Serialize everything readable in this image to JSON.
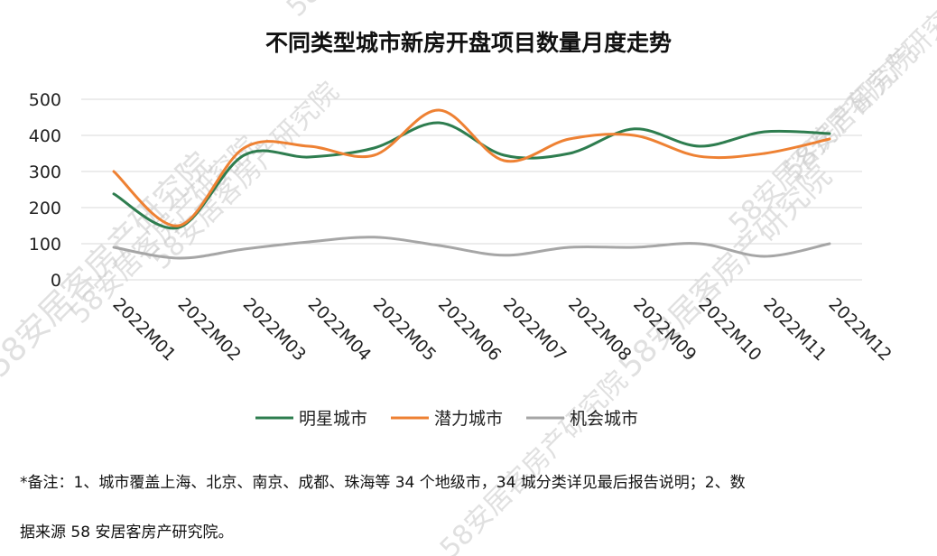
{
  "chart_data": {
    "type": "line",
    "title": "不同类型城市新房开盘项目数量月度走势",
    "categories": [
      "2022M01",
      "2022M02",
      "2022M03",
      "2022M04",
      "2022M05",
      "2022M06",
      "2022M07",
      "2022M08",
      "2022M09",
      "2022M10",
      "2022M11",
      "2022M12"
    ],
    "ylim": [
      0,
      500
    ],
    "yticks": [
      "0",
      "100",
      "200",
      "300",
      "400",
      "500"
    ],
    "grid": true,
    "legend_position": "bottom",
    "series": [
      {
        "name": "明星城市",
        "color": "#2e7d4f",
        "values": [
          238,
          145,
          345,
          340,
          365,
          435,
          345,
          350,
          418,
          370,
          410,
          405
        ]
      },
      {
        "name": "潜力城市",
        "color": "#ee8133",
        "values": [
          300,
          150,
          365,
          370,
          345,
          470,
          330,
          390,
          400,
          342,
          350,
          390
        ]
      },
      {
        "name": "机会城市",
        "color": "#a6a6a6",
        "values": [
          90,
          60,
          85,
          105,
          118,
          95,
          68,
          90,
          90,
          100,
          65,
          100
        ]
      }
    ]
  },
  "notes": {
    "line1": "*备注：1、城市覆盖上海、北京、南京、成都、珠海等 34 个地级市，34 城分类详见最后报告说明；2、数",
    "line2": "据来源 58 安居客房产研究院。"
  },
  "watermark_text": "58安居客房产研究院"
}
